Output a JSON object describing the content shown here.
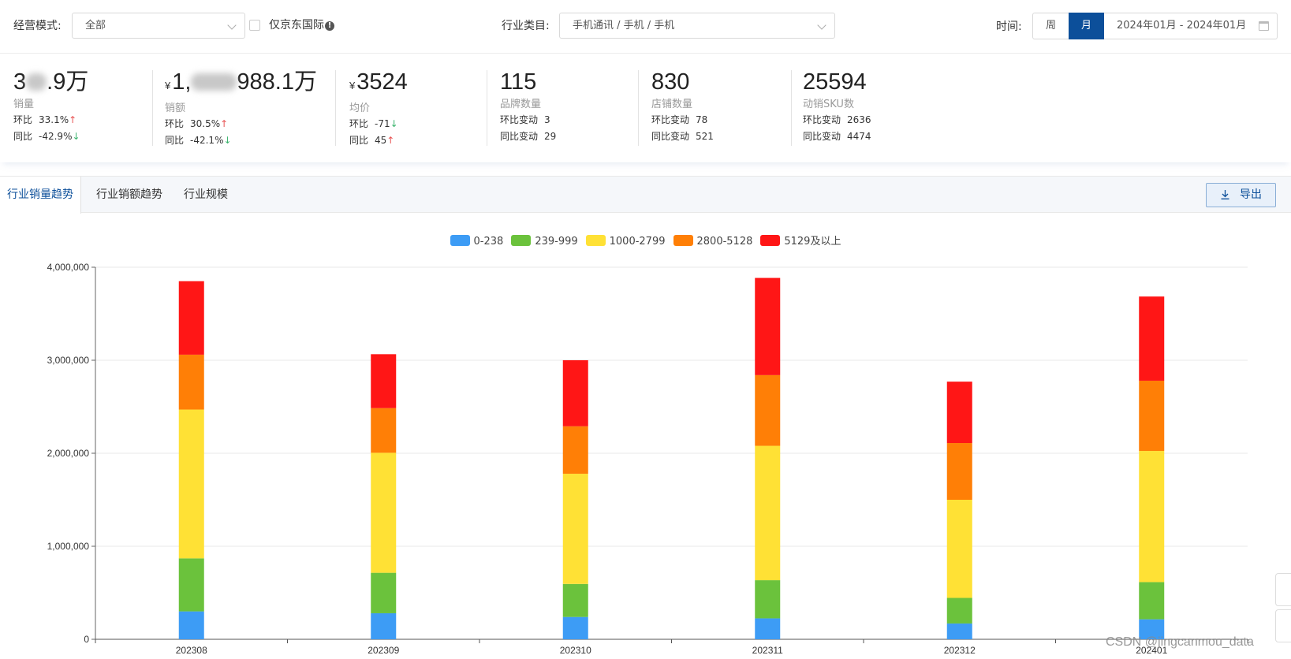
{
  "filters": {
    "mode_label": "经营模式:",
    "mode_value": "全部",
    "jd_intl_label": "仅京东国际",
    "info_glyph": "!",
    "category_label": "行业类目:",
    "category_value": "手机通讯 / 手机 / 手机",
    "time_label": "时间:",
    "week_label": "周",
    "month_label": "月",
    "date_range": "2024年01月 - 2024年01月"
  },
  "kpis": {
    "currency": "¥",
    "sales_volume": {
      "value_head": "3",
      "value_tail": ".9万",
      "name": "销量",
      "mom_label": "环比",
      "mom_value": "33.1%",
      "mom_arrow": "↑",
      "yoy_label": "同比",
      "yoy_value": "-42.9%",
      "yoy_arrow": "↓"
    },
    "sales_amount": {
      "value_head": "1,",
      "value_tail": "988.1万",
      "name": "销额",
      "mom_label": "环比",
      "mom_value": "30.5%",
      "mom_arrow": "↑",
      "yoy_label": "同比",
      "yoy_value": "-42.1%",
      "yoy_arrow": "↓"
    },
    "avg_price": {
      "value": "3524",
      "name": "均价",
      "mom_label": "环比",
      "mom_value": "-71",
      "mom_arrow": "↓",
      "yoy_label": "同比",
      "yoy_value": "45",
      "yoy_arrow": "↑"
    },
    "brand_count": {
      "value": "115",
      "name": "品牌数量",
      "mom_label": "环比变动",
      "mom_value": "3",
      "yoy_label": "同比变动",
      "yoy_value": "29"
    },
    "store_count": {
      "value": "830",
      "name": "店铺数量",
      "mom_label": "环比变动",
      "mom_value": "78",
      "yoy_label": "同比变动",
      "yoy_value": "521"
    },
    "sku_count": {
      "value": "25594",
      "name": "动销SKU数",
      "mom_label": "环比变动",
      "mom_value": "2636",
      "yoy_label": "同比变动",
      "yoy_value": "4474"
    }
  },
  "tabs": [
    {
      "label": "行业销量趋势",
      "active": true
    },
    {
      "label": "行业销额趋势",
      "active": false
    },
    {
      "label": "行业规模",
      "active": false
    }
  ],
  "export_label": "导出",
  "watermark": "CSDN @jingcanmou_data",
  "colors": {
    "accent": "#0c4f9a",
    "up": "#e85353",
    "down": "#3cb46e"
  },
  "icons": [
    "chevron-down-icon",
    "info-icon",
    "calendar-icon",
    "download-icon",
    "up-arrow-icon",
    "down-arrow-icon"
  ],
  "chart_data": {
    "type": "bar",
    "stacked": true,
    "categories": [
      "202308",
      "202309",
      "202310",
      "202311",
      "202312",
      "202401"
    ],
    "series": [
      {
        "name": "0-238",
        "color": "#3d9cf5",
        "values": [
          300000,
          280000,
          240000,
          225000,
          170000,
          215000
        ]
      },
      {
        "name": "239-999",
        "color": "#6bc23c",
        "values": [
          570000,
          435000,
          355000,
          410000,
          275000,
          400000
        ]
      },
      {
        "name": "1000-2799",
        "color": "#ffe135",
        "values": [
          1600000,
          1290000,
          1185000,
          1445000,
          1055000,
          1410000
        ]
      },
      {
        "name": "2800-5128",
        "color": "#ff7f06",
        "values": [
          590000,
          480000,
          510000,
          760000,
          610000,
          755000
        ]
      },
      {
        "name": "5129及以上",
        "color": "#ff1616",
        "values": [
          790000,
          580000,
          710000,
          1045000,
          660000,
          905000
        ]
      }
    ],
    "ylim": [
      0,
      4000000
    ],
    "yticks": [
      "0",
      "1,000,000",
      "2,000,000",
      "3,000,000",
      "4,000,000"
    ],
    "grid": true,
    "legend": "top-center"
  }
}
